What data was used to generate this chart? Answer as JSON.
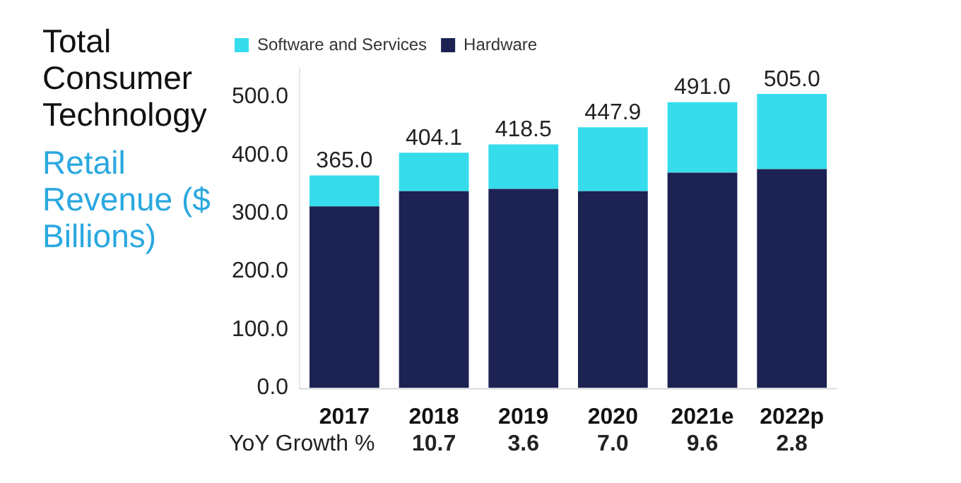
{
  "chart_data": {
    "type": "bar",
    "title": "Total Consumer Technology",
    "subtitle": "Retail Revenue ($ Billions)",
    "categories": [
      "2017",
      "2018",
      "2019",
      "2020",
      "2021e",
      "2022p"
    ],
    "series": [
      {
        "name": "Hardware",
        "color": "#1c2252",
        "values": [
          312,
          338,
          342,
          338,
          370,
          376
        ]
      },
      {
        "name": "Software and Services",
        "color": "#36dceb",
        "values": [
          53,
          66.1,
          76.5,
          109.9,
          121,
          129
        ]
      }
    ],
    "stacked": true,
    "totals": [
      "365.0",
      "404.1",
      "418.5",
      "447.9",
      "491.0",
      "505.0"
    ],
    "ylim": [
      0,
      550
    ],
    "yticks": [
      {
        "value": 0,
        "label": "0.0"
      },
      {
        "value": 100,
        "label": "100.0"
      },
      {
        "value": 200,
        "label": "200.0"
      },
      {
        "value": 300,
        "label": "300.0"
      },
      {
        "value": 400,
        "label": "400.0"
      },
      {
        "value": 500,
        "label": "500.0"
      }
    ],
    "grid": false,
    "legend": "top left",
    "annotations": [
      "YoY Growth %",
      "10.7",
      "3.6",
      "7.0",
      "9.6",
      "2.8"
    ]
  }
}
